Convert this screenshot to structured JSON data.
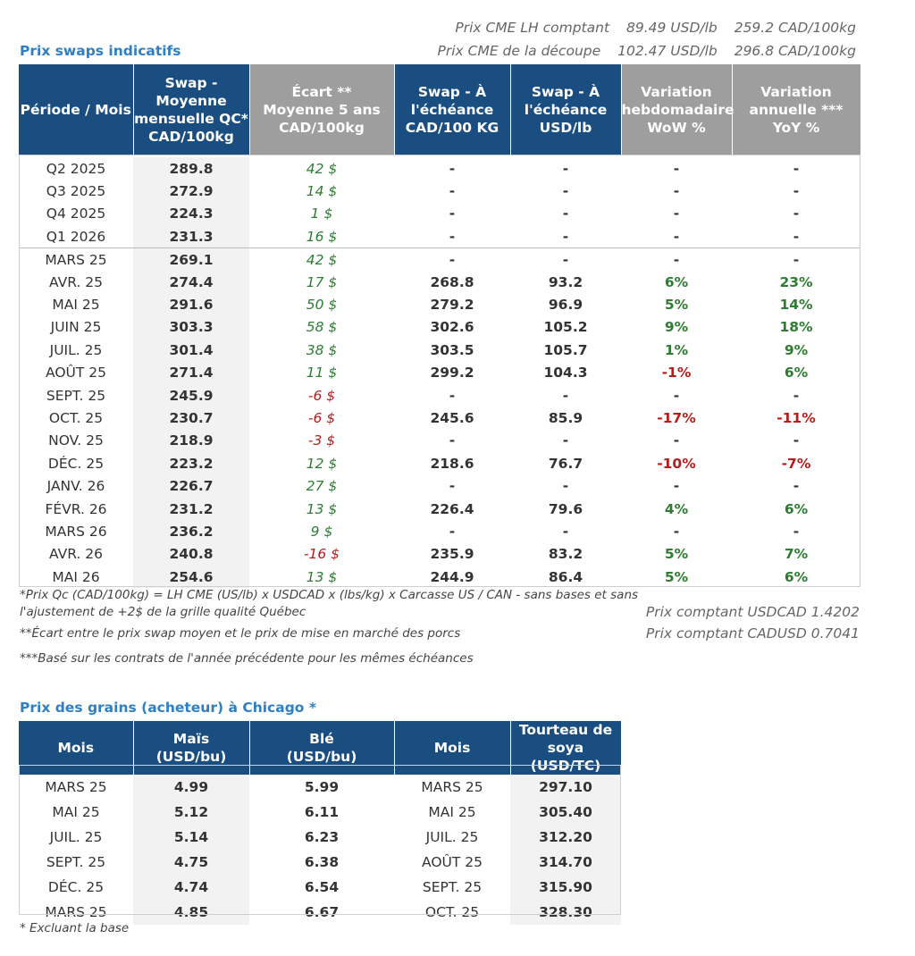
{
  "cme": [
    {
      "label": "Prix CME LH comptant",
      "usd": "89.49 USD/lb",
      "cad": "259.2 CAD/100kg"
    },
    {
      "label": "Prix CME de la découpe",
      "usd": "102.47 USD/lb",
      "cad": "296.8 CAD/100kg"
    }
  ],
  "swaps": {
    "title": "Prix swaps indicatifs",
    "headers": [
      "Période / Mois",
      "Swap - Moyenne mensuelle QC* CAD/100kg",
      "Écart ** Moyenne 5 ans CAD/100kg",
      "Swap - À l'échéance CAD/100 KG",
      "Swap - À l'échéance USD/lb",
      "Variation hebdomadaire WoW %",
      "Variation annuelle *** YoY %"
    ],
    "header_lines": [
      [
        "Période / Mois"
      ],
      [
        "Swap - Moyenne",
        "mensuelle QC*",
        "CAD/100kg"
      ],
      [
        "Écart **",
        "Moyenne 5 ans",
        "CAD/100kg"
      ],
      [
        "Swap - À",
        "l'échéance",
        "CAD/100 KG"
      ],
      [
        "Swap - À",
        "l'échéance",
        "USD/lb"
      ],
      [
        "Variation",
        "hebdomadaire",
        "WoW %"
      ],
      [
        "Variation",
        "annuelle ***",
        "YoY %"
      ]
    ],
    "rows": [
      [
        "Q2 2025",
        "289.8",
        "42 $",
        "-",
        "-",
        "-",
        "-"
      ],
      [
        "Q3 2025",
        "272.9",
        "14 $",
        "-",
        "-",
        "-",
        "-"
      ],
      [
        "Q4 2025",
        "224.3",
        "1 $",
        "-",
        "-",
        "-",
        "-"
      ],
      [
        "Q1 2026",
        "231.3",
        "16 $",
        "-",
        "-",
        "-",
        "-"
      ],
      [
        "MARS 25",
        "269.1",
        "42 $",
        "-",
        "-",
        "-",
        "-"
      ],
      [
        "AVR. 25",
        "274.4",
        "17 $",
        "268.8",
        "93.2",
        "6%",
        "23%"
      ],
      [
        "MAI 25",
        "291.6",
        "50 $",
        "279.2",
        "96.9",
        "5%",
        "14%"
      ],
      [
        "JUIN 25",
        "303.3",
        "58 $",
        "302.6",
        "105.2",
        "9%",
        "18%"
      ],
      [
        "JUIL. 25",
        "301.4",
        "38 $",
        "303.5",
        "105.7",
        "1%",
        "9%"
      ],
      [
        "AOÛT 25",
        "271.4",
        "11 $",
        "299.2",
        "104.3",
        "-1%",
        "6%"
      ],
      [
        "SEPT. 25",
        "245.9",
        "-6 $",
        "-",
        "-",
        "-",
        "-"
      ],
      [
        "OCT. 25",
        "230.7",
        "-6 $",
        "245.6",
        "85.9",
        "-17%",
        "-11%"
      ],
      [
        "NOV. 25",
        "218.9",
        "-3 $",
        "-",
        "-",
        "-",
        "-"
      ],
      [
        "DÉC. 25",
        "223.2",
        "12 $",
        "218.6",
        "76.7",
        "-10%",
        "-7%"
      ],
      [
        "JANV. 26",
        "226.7",
        "27 $",
        "-",
        "-",
        "-",
        "-"
      ],
      [
        "FÉVR. 26",
        "231.2",
        "13 $",
        "226.4",
        "79.6",
        "4%",
        "6%"
      ],
      [
        "MARS 26",
        "236.2",
        "9 $",
        "-",
        "-",
        "-",
        "-"
      ],
      [
        "AVR. 26",
        "240.8",
        "-16 $",
        "235.9",
        "83.2",
        "5%",
        "7%"
      ],
      [
        "MAI 26",
        "254.6",
        "13 $",
        "244.9",
        "86.4",
        "5%",
        "6%"
      ]
    ],
    "footnotes": [
      "*Prix Qc (CAD/100kg) = LH CME (US/lb) x USDCAD x (lbs/kg) x Carcasse US / CAN - sans bases et sans l'ajustement de +2$ de la grille qualité Québec",
      "**Écart entre le prix swap moyen et le prix de mise en marché des porcs",
      "***Basé sur les contrats de l'année précédente pour les mêmes échéances"
    ],
    "fx": [
      "Prix comptant USDCAD 1.4202",
      "Prix comptant CADUSD 0.7041"
    ]
  },
  "grains": {
    "title": "Prix des grains (acheteur) à Chicago *",
    "headers": [
      "Mois",
      "Maïs (USD/bu)",
      "Blé (USD/bu)",
      "Mois",
      "Tourteau de soya (USD/TC)"
    ],
    "header_lines": [
      [
        "Mois"
      ],
      [
        "Maïs",
        "(USD/bu)"
      ],
      [
        "Blé",
        "(USD/bu)"
      ],
      [
        "Mois"
      ],
      [
        "Tourteau de",
        "soya (USD/TC)"
      ]
    ],
    "rows": [
      [
        "MARS 25",
        "4.99",
        "5.99",
        "MARS 25",
        "297.10"
      ],
      [
        "MAI 25",
        "5.12",
        "6.11",
        "MAI 25",
        "305.40"
      ],
      [
        "JUIL. 25",
        "5.14",
        "6.23",
        "JUIL. 25",
        "312.20"
      ],
      [
        "SEPT. 25",
        "4.75",
        "6.38",
        "AOÛT 25",
        "314.70"
      ],
      [
        "DÉC. 25",
        "4.74",
        "6.54",
        "SEPT. 25",
        "315.90"
      ],
      [
        "MARS 25",
        "4.85",
        "6.67",
        "OCT. 25",
        "328.30"
      ]
    ],
    "footnote": "* Excluant la base"
  }
}
